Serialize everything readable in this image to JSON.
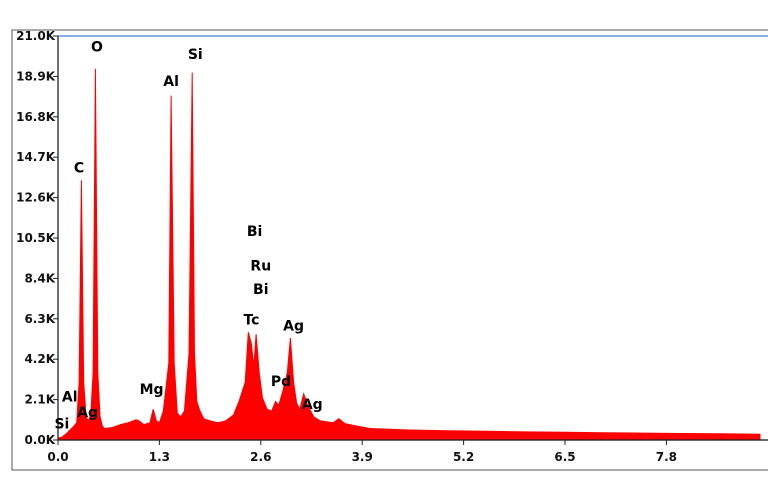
{
  "chart_data": {
    "type": "area",
    "title": "",
    "xlabel": "",
    "ylabel": "",
    "xlim": [
      0,
      9.0
    ],
    "ylim": [
      0,
      21000
    ],
    "x_ticks": [
      "0.0",
      "1.3",
      "2.6",
      "3.9",
      "5.2",
      "6.5",
      "7.8"
    ],
    "x_tick_values": [
      0.0,
      1.3,
      2.6,
      3.9,
      5.2,
      6.5,
      7.8
    ],
    "y_ticks": [
      "0.0K",
      "2.1K",
      "4.2K",
      "6.3K",
      "8.4K",
      "10.5K",
      "12.6K",
      "14.7K",
      "16.8K",
      "18.9K",
      "21.0K"
    ],
    "y_tick_values": [
      0,
      2100,
      4200,
      6300,
      8400,
      10500,
      12600,
      14700,
      16800,
      18900,
      21000
    ],
    "series": [
      {
        "color": "#ff0000",
        "x": [
          0.0,
          0.05,
          0.1,
          0.15,
          0.2,
          0.24,
          0.27,
          0.3,
          0.33,
          0.36,
          0.39,
          0.42,
          0.45,
          0.48,
          0.51,
          0.54,
          0.57,
          0.6,
          0.7,
          0.8,
          0.9,
          1.0,
          1.04,
          1.1,
          1.18,
          1.22,
          1.26,
          1.3,
          1.35,
          1.42,
          1.45,
          1.49,
          1.53,
          1.57,
          1.62,
          1.68,
          1.72,
          1.75,
          1.78,
          1.82,
          1.87,
          1.95,
          2.05,
          2.15,
          2.25,
          2.32,
          2.4,
          2.44,
          2.48,
          2.51,
          2.54,
          2.58,
          2.62,
          2.68,
          2.74,
          2.79,
          2.83,
          2.88,
          2.94,
          2.98,
          3.02,
          3.06,
          3.1,
          3.15,
          3.2,
          3.28,
          3.36,
          3.44,
          3.53,
          3.6,
          3.68,
          3.8,
          4.0,
          4.5,
          5.0,
          5.5,
          6.0,
          6.5,
          7.0,
          7.5,
          8.0,
          8.5,
          9.0
        ],
        "y": [
          100,
          150,
          300,
          500,
          700,
          900,
          3000,
          13500,
          3000,
          1200,
          1000,
          1300,
          3500,
          19300,
          3500,
          1200,
          700,
          600,
          650,
          800,
          900,
          1050,
          1000,
          800,
          900,
          1600,
          1000,
          900,
          1500,
          4000,
          17900,
          4000,
          1400,
          1200,
          1500,
          4500,
          19100,
          4500,
          2000,
          1500,
          1100,
          1000,
          900,
          1000,
          1300,
          2000,
          3000,
          5600,
          5000,
          3800,
          5500,
          3500,
          2200,
          1600,
          1500,
          2000,
          1800,
          2500,
          3500,
          5300,
          3000,
          1900,
          1600,
          2400,
          1800,
          1200,
          1000,
          950,
          900,
          1100,
          850,
          750,
          600,
          520,
          480,
          450,
          420,
          400,
          380,
          360,
          340,
          320,
          300
        ]
      }
    ],
    "annotations": [
      {
        "text": "O",
        "x": 0.5,
        "y": 20200
      },
      {
        "text": "Si",
        "x": 1.76,
        "y": 19800
      },
      {
        "text": "Al",
        "x": 1.45,
        "y": 18400
      },
      {
        "text": "C",
        "x": 0.27,
        "y": 13900
      },
      {
        "text": "Bi",
        "x": 2.52,
        "y": 10600
      },
      {
        "text": "Ru",
        "x": 2.6,
        "y": 8800
      },
      {
        "text": "Bi",
        "x": 2.6,
        "y": 7600
      },
      {
        "text": "Tc",
        "x": 2.48,
        "y": 6000
      },
      {
        "text": "Ag",
        "x": 3.02,
        "y": 5700
      },
      {
        "text": "Pd",
        "x": 2.86,
        "y": 2800
      },
      {
        "text": "Mg",
        "x": 1.2,
        "y": 2400
      },
      {
        "text": "Al",
        "x": 0.15,
        "y": 2000
      },
      {
        "text": "Ag",
        "x": 3.26,
        "y": 1600
      },
      {
        "text": "Ag",
        "x": 0.38,
        "y": 1200
      },
      {
        "text": "Si",
        "x": 0.05,
        "y": 600
      }
    ]
  }
}
